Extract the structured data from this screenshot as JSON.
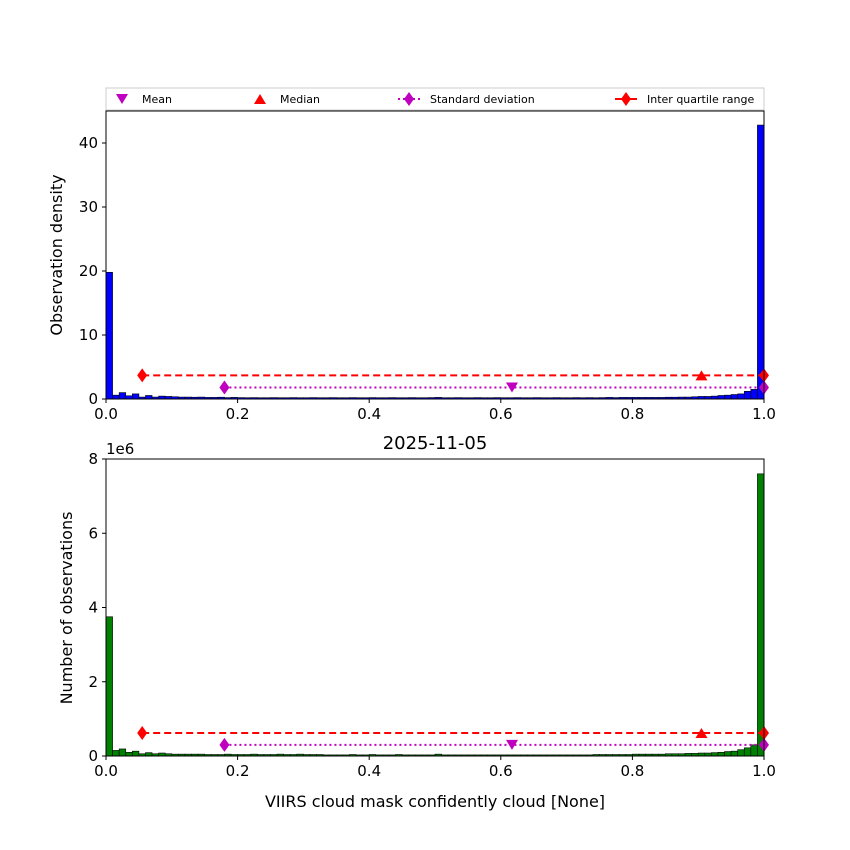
{
  "legend": {
    "placement": "top",
    "items": [
      {
        "label": "Mean",
        "marker": "triangle-down",
        "color": "#bf00bf",
        "line": "none"
      },
      {
        "label": "Median",
        "marker": "triangle-up",
        "color": "#ff0000",
        "line": "none"
      },
      {
        "label": "Standard deviation",
        "marker": "diamond",
        "color": "#bf00bf",
        "line": "dotted"
      },
      {
        "label": "Inter quartile range",
        "marker": "diamond",
        "color": "#ff0000",
        "line": "solid"
      }
    ]
  },
  "chart_data": [
    {
      "type": "bar",
      "title": "",
      "xlabel": "",
      "ylabel": "Observation density",
      "xlim": [
        0,
        1
      ],
      "ylim": [
        0,
        45
      ],
      "xticks": [
        0.0,
        0.2,
        0.4,
        0.6,
        0.8,
        1.0
      ],
      "xtick_labels": [
        "0.0",
        "0.2",
        "0.4",
        "0.6",
        "0.8",
        "1.0"
      ],
      "yticks": [
        0,
        10,
        20,
        30,
        40
      ],
      "ytick_labels": [
        "0",
        "10",
        "20",
        "30",
        "40"
      ],
      "bar_color": "#0000ff",
      "bins": 100,
      "values": [
        19.8,
        0.6,
        1.0,
        0.5,
        0.8,
        0.3,
        0.55,
        0.3,
        0.45,
        0.4,
        0.35,
        0.3,
        0.3,
        0.28,
        0.3,
        0.25,
        0.25,
        0.28,
        0.22,
        0.25,
        0.22,
        0.2,
        0.22,
        0.2,
        0.2,
        0.22,
        0.2,
        0.2,
        0.22,
        0.2,
        0.2,
        0.22,
        0.2,
        0.2,
        0.22,
        0.2,
        0.2,
        0.22,
        0.2,
        0.2,
        0.22,
        0.2,
        0.2,
        0.22,
        0.2,
        0.2,
        0.22,
        0.2,
        0.2,
        0.22,
        0.25,
        0.2,
        0.2,
        0.22,
        0.2,
        0.2,
        0.22,
        0.2,
        0.2,
        0.22,
        0.2,
        0.2,
        0.22,
        0.2,
        0.2,
        0.22,
        0.2,
        0.2,
        0.22,
        0.2,
        0.2,
        0.22,
        0.2,
        0.22,
        0.2,
        0.22,
        0.25,
        0.22,
        0.25,
        0.25,
        0.25,
        0.25,
        0.25,
        0.25,
        0.25,
        0.28,
        0.28,
        0.3,
        0.3,
        0.35,
        0.4,
        0.4,
        0.45,
        0.55,
        0.6,
        0.7,
        0.8,
        1.2,
        1.5,
        42.8
      ],
      "stats": {
        "mean": 0.617,
        "median": 0.905,
        "std_left": 0.18,
        "std_right": 1.0,
        "q1": 0.055,
        "q3": 1.0
      },
      "stats_y": {
        "iqr": 3.7,
        "std": 1.8,
        "mean": 1.8,
        "median": 3.7
      }
    },
    {
      "type": "bar",
      "title": "2025-11-05",
      "xlabel": "VIIRS cloud mask confidently cloud [None]",
      "ylabel": "Number of observations",
      "y_offset_label": "1e6",
      "xlim": [
        0,
        1
      ],
      "ylim": [
        0,
        8
      ],
      "xticks": [
        0.0,
        0.2,
        0.4,
        0.6,
        0.8,
        1.0
      ],
      "xtick_labels": [
        "0.0",
        "0.2",
        "0.4",
        "0.6",
        "0.8",
        "1.0"
      ],
      "yticks": [
        0,
        2,
        4,
        6,
        8
      ],
      "ytick_labels": [
        "0",
        "2",
        "4",
        "6",
        "8"
      ],
      "bar_color": "#008000",
      "bins": 100,
      "values": [
        3.75,
        0.15,
        0.19,
        0.1,
        0.13,
        0.06,
        0.09,
        0.06,
        0.08,
        0.06,
        0.05,
        0.05,
        0.05,
        0.05,
        0.05,
        0.04,
        0.04,
        0.04,
        0.05,
        0.04,
        0.04,
        0.04,
        0.05,
        0.04,
        0.04,
        0.04,
        0.05,
        0.04,
        0.04,
        0.05,
        0.04,
        0.04,
        0.04,
        0.03,
        0.03,
        0.03,
        0.03,
        0.04,
        0.03,
        0.03,
        0.04,
        0.03,
        0.03,
        0.03,
        0.04,
        0.03,
        0.03,
        0.03,
        0.03,
        0.03,
        0.05,
        0.03,
        0.03,
        0.03,
        0.03,
        0.03,
        0.03,
        0.03,
        0.03,
        0.03,
        0.03,
        0.03,
        0.03,
        0.03,
        0.03,
        0.03,
        0.03,
        0.03,
        0.03,
        0.03,
        0.03,
        0.03,
        0.03,
        0.03,
        0.04,
        0.04,
        0.04,
        0.04,
        0.04,
        0.04,
        0.05,
        0.05,
        0.05,
        0.05,
        0.05,
        0.06,
        0.06,
        0.06,
        0.07,
        0.07,
        0.08,
        0.08,
        0.09,
        0.1,
        0.12,
        0.13,
        0.17,
        0.22,
        0.3,
        7.6
      ],
      "stats": {
        "mean": 0.617,
        "median": 0.905,
        "std_left": 0.18,
        "std_right": 1.0,
        "q1": 0.055,
        "q3": 1.0
      },
      "stats_y": {
        "iqr": 0.62,
        "std": 0.3,
        "mean": 0.3,
        "median": 0.62
      }
    }
  ]
}
